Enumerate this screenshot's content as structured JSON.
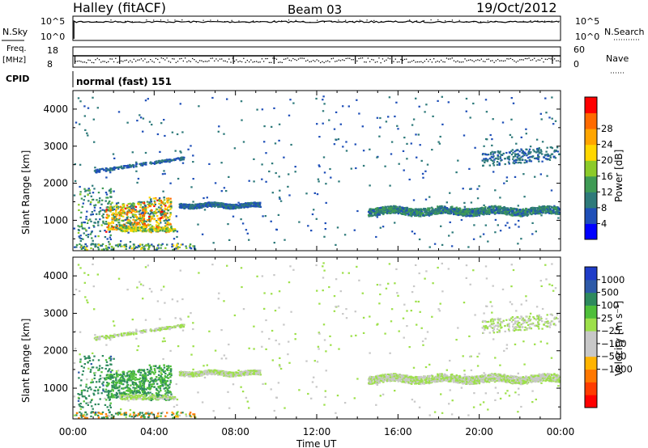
{
  "header": {
    "station": "Halley (fitACF)",
    "beam": "Beam 03",
    "date": "19/Oct/2012"
  },
  "top_panels": {
    "nsky_label": "N.Sky",
    "nsearch_label": "N.Search",
    "freq_label_1": "Freq.",
    "freq_label_2": "[MHz]",
    "nave_label": "Nave",
    "cpid_label": "CPID",
    "cpid_text": "normal (fast) 151",
    "noise_left_ticks": [
      "10^5",
      "10^0"
    ],
    "noise_right_ticks": [
      "10^5",
      "10^0"
    ],
    "freq_left_ticks": [
      "18",
      "8"
    ],
    "nave_right_ticks": [
      "60",
      "0"
    ]
  },
  "axes": {
    "ylabel": "Slant Range [km]",
    "xlabel": "Time UT",
    "yticks": [
      "1000",
      "2000",
      "3000",
      "4000"
    ],
    "xticks": [
      "00:00",
      "04:00",
      "08:00",
      "12:00",
      "16:00",
      "20:00",
      "00:00"
    ]
  },
  "colorbars": {
    "power": {
      "label": "Power [dB]",
      "ticks": [
        "4",
        "8",
        "12",
        "16",
        "20",
        "24",
        "28"
      ],
      "colors": [
        "#0000ff",
        "#1f4fb8",
        "#2e7a7a",
        "#3f9b55",
        "#8ccb2a",
        "#ffd700",
        "#ffa500",
        "#ff6a00",
        "#ff0000"
      ]
    },
    "velocity": {
      "label": "Velocity [m s⁻¹]",
      "ticks": [
        "1000",
        "500",
        "100",
        "25",
        "−25",
        "−100",
        "−500",
        "−1000"
      ],
      "colors": [
        "#1f3cc8",
        "#2e5aa8",
        "#2e8a5e",
        "#4fbf3a",
        "#9de04a",
        "#c8c8c8",
        "#c8c8c8",
        "#ffb400",
        "#ff7800",
        "#ff3c00",
        "#ff0000"
      ]
    }
  },
  "chart_data": [
    {
      "type": "heatmap",
      "title": "Power",
      "xlabel": "Time UT",
      "ylabel": "Slant Range [km]",
      "xlim": [
        0,
        24
      ],
      "ylim": [
        180,
        4500
      ],
      "colorbar": {
        "label": "Power [dB]",
        "range": [
          0,
          30
        ]
      },
      "features": [
        {
          "t_start": 0.3,
          "t_end": 2.0,
          "r_start": 300,
          "r_end": 1900,
          "value_db": 8
        },
        {
          "t_start": 1.6,
          "t_end": 5.0,
          "r_start": 600,
          "r_end": 1700,
          "value_db": 20
        },
        {
          "t_start": 5.2,
          "t_end": 9.0,
          "r_start": 1350,
          "r_end": 1500,
          "value_db": 6
        },
        {
          "t_start": 14.5,
          "t_end": 24.0,
          "r_start": 1150,
          "r_end": 1400,
          "value_db": 8
        },
        {
          "t_start": 20.0,
          "t_end": 24.0,
          "r_start": 2500,
          "r_end": 2900,
          "value_db": 6
        }
      ]
    },
    {
      "type": "heatmap",
      "title": "Velocity",
      "xlabel": "Time UT",
      "ylabel": "Slant Range [km]",
      "xlim": [
        0,
        24
      ],
      "ylim": [
        180,
        4500
      ],
      "colorbar": {
        "label": "Velocity [m s⁻¹]",
        "range": [
          -1000,
          1000
        ]
      },
      "features": [
        {
          "t_start": 0.3,
          "t_end": 2.0,
          "r_start": 300,
          "r_end": 1900,
          "value_ms": 300
        },
        {
          "t_start": 1.6,
          "t_end": 5.0,
          "r_start": 600,
          "r_end": 1700,
          "value_ms": 80
        },
        {
          "t_start": 5.2,
          "t_end": 9.0,
          "r_start": 1350,
          "r_end": 1500,
          "value_ms": 0
        },
        {
          "t_start": 14.5,
          "t_end": 24.0,
          "r_start": 1150,
          "r_end": 1400,
          "value_ms": 0
        },
        {
          "t_start": 20.0,
          "t_end": 24.0,
          "r_start": 2500,
          "r_end": 2900,
          "value_ms": 0
        }
      ]
    }
  ]
}
